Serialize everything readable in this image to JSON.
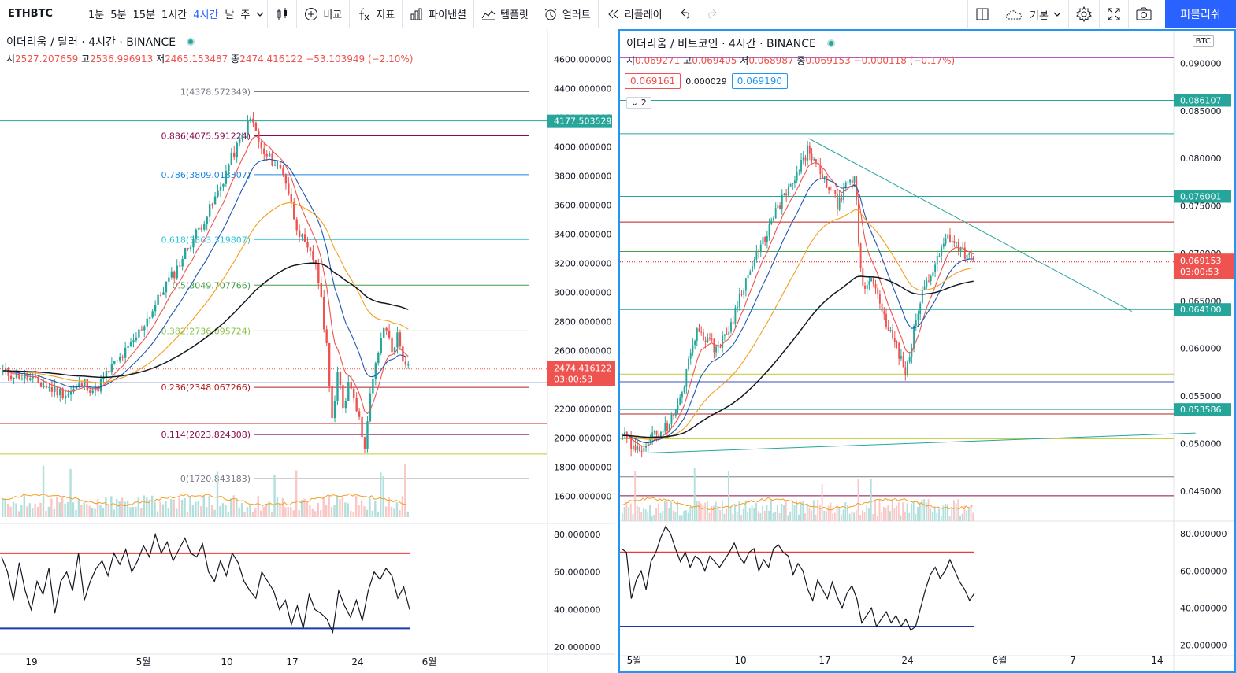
{
  "toolbar": {
    "symbol": "ETHBTC",
    "intervals": [
      "1분",
      "5분",
      "15분",
      "1시간",
      "4시간",
      "날",
      "주"
    ],
    "active_interval": "4시간",
    "compare": "비교",
    "indicators": "지표",
    "pine": "파이낸셜",
    "templates": "템플릿",
    "alert": "얼러트",
    "replay": "리플레이",
    "layout": "기본",
    "publish": "퍼블리쉬",
    "icons": [
      "candle-type-icon",
      "add-compare-icon",
      "fx-icon",
      "financials-icon",
      "templates-icon",
      "alarm-icon",
      "replay-icon",
      "undo-icon",
      "redo-icon",
      "layout-icon",
      "cloud-icon",
      "gear-icon",
      "fullscreen-icon",
      "camera-icon"
    ]
  },
  "left_pane": {
    "title": "이더리움 / 달러 · 4시간 · BINANCE",
    "ohlc": {
      "o_label": "시",
      "o": "2527.207659",
      "h_label": "고",
      "h": "2536.996913",
      "l_label": "저",
      "l": "2465.153487",
      "c_label": "종",
      "c": "2474.416122",
      "chg": "−53.103949 (−2.10%)"
    }
  },
  "right_pane": {
    "title": "이더리움 / 비트코인 · 4시간 · BINANCE",
    "ohlc": {
      "o_label": "시",
      "o": "0.069271",
      "h_label": "고",
      "h": "0.069405",
      "l_label": "저",
      "l": "0.068987",
      "c_label": "종",
      "c": "0.069153",
      "chg": "−0.000118 (−0.17%)"
    },
    "bid": "0.069161",
    "spread": "0.000029",
    "ask": "0.069190",
    "collapse": "2",
    "currency": "BTC"
  },
  "chart_data": [
    {
      "type": "candlestick",
      "title": "이더리움 / 달러 · 4시간 · BINANCE",
      "ylim": [
        1500,
        4700
      ],
      "y_ticks": [
        "4600.000000",
        "4400.000000",
        "4200.000000",
        "4000.000000",
        "3800.000000",
        "3600.000000",
        "3400.000000",
        "3200.000000",
        "3000.000000",
        "2800.000000",
        "2600.000000",
        "2400.000000",
        "2200.000000",
        "2000.000000",
        "1800.000000",
        "1600.000000"
      ],
      "x_ticks": [
        "19",
        "5월",
        "10",
        "17",
        "24",
        "6월"
      ],
      "last_price": "2474.416122",
      "countdown": "03:00:53",
      "highlight_level": "4177.503529",
      "close_path": [
        [
          0,
          2450
        ],
        [
          8,
          2420
        ],
        [
          16,
          2350
        ],
        [
          24,
          2300
        ],
        [
          30,
          2380
        ],
        [
          34,
          2320
        ],
        [
          40,
          2480
        ],
        [
          44,
          2560
        ],
        [
          48,
          2650
        ],
        [
          52,
          2780
        ],
        [
          56,
          2900
        ],
        [
          60,
          3050
        ],
        [
          64,
          3150
        ],
        [
          68,
          3300
        ],
        [
          72,
          3420
        ],
        [
          76,
          3550
        ],
        [
          80,
          3700
        ],
        [
          84,
          3900
        ],
        [
          88,
          4050
        ],
        [
          92,
          4200
        ],
        [
          96,
          3950
        ],
        [
          100,
          3900
        ],
        [
          104,
          3820
        ],
        [
          108,
          3500
        ],
        [
          112,
          3300
        ],
        [
          116,
          3200
        ],
        [
          118,
          2900
        ],
        [
          120,
          2600
        ],
        [
          122,
          2100
        ],
        [
          124,
          2450
        ],
        [
          126,
          2200
        ],
        [
          128,
          2400
        ],
        [
          130,
          2300
        ],
        [
          132,
          2100
        ],
        [
          134,
          1950
        ],
        [
          136,
          2300
        ],
        [
          138,
          2500
        ],
        [
          140,
          2700
        ],
        [
          142,
          2750
        ],
        [
          144,
          2600
        ],
        [
          146,
          2700
        ],
        [
          148,
          2550
        ],
        [
          150,
          2474
        ]
      ],
      "fib_levels": [
        {
          "label": "1(4378.572349)",
          "value": 4378.572349,
          "color": "#787b86"
        },
        {
          "label": "0.886(4075.591224)",
          "value": 4075.591224,
          "color": "#880e4f"
        },
        {
          "label": "0.786(3809.018307)",
          "value": 3809.018307,
          "color": "#1e88e5"
        },
        {
          "label": "0.618(3363.319807)",
          "value": 3363.319807,
          "color": "#26c6da"
        },
        {
          "label": "0.5(3049.707766)",
          "value": 3049.707766,
          "color": "#43a047"
        },
        {
          "label": "0.382(2736.095724)",
          "value": 2736.095724,
          "color": "#8bc34a"
        },
        {
          "label": "0.236(2348.067266)",
          "value": 2348.067266,
          "color": "#b71c1c"
        },
        {
          "label": "0.114(2023.824308)",
          "value": 2023.824308,
          "color": "#880e4f"
        },
        {
          "label": "0(1720.843183)",
          "value": 1720.843183,
          "color": "#787b86"
        }
      ],
      "hlines": [
        {
          "value": 4177.503529,
          "color": "#26a69a"
        },
        {
          "value": 3800,
          "color": "#b71c1c"
        },
        {
          "value": 2380,
          "color": "#3f51b5"
        },
        {
          "value": 2100,
          "color": "#c62828"
        },
        {
          "value": 1890,
          "color": "#c0ca33"
        }
      ],
      "rsi": {
        "upper": 70,
        "lower": 30,
        "ticks": [
          "80.000000",
          "60.000000",
          "40.000000",
          "20.000000"
        ],
        "ylim": [
          18,
          85
        ],
        "values": [
          68,
          60,
          45,
          65,
          50,
          40,
          55,
          48,
          62,
          38,
          55,
          60,
          50,
          70,
          45,
          55,
          62,
          66,
          58,
          70,
          64,
          72,
          60,
          66,
          74,
          68,
          80,
          70,
          76,
          66,
          72,
          78,
          70,
          68,
          75,
          60,
          55,
          66,
          58,
          70,
          65,
          55,
          50,
          46,
          60,
          55,
          50,
          40,
          45,
          32,
          42,
          30,
          48,
          40,
          38,
          35,
          28,
          50,
          42,
          36,
          45,
          34,
          50,
          60,
          56,
          62,
          58,
          46,
          52,
          40
        ]
      }
    },
    {
      "type": "candlestick",
      "title": "이더리움 / 비트코인 · 4시간 · BINANCE",
      "ylim": [
        0.0425,
        0.0912
      ],
      "y_ticks": [
        "0.090000",
        "0.085000",
        "0.080000",
        "0.075000",
        "0.070000",
        "0.065000",
        "0.060000",
        "0.055000",
        "0.050000",
        "0.045000"
      ],
      "x_ticks": [
        "5월",
        "10",
        "17",
        "24",
        "6월",
        "7",
        "14"
      ],
      "last_price": "0.069153",
      "countdown": "03:00:53",
      "level_labels": [
        "0.086107",
        "0.076001",
        "0.064100",
        "0.053586"
      ],
      "close_path": [
        [
          0,
          0.051
        ],
        [
          6,
          0.049
        ],
        [
          10,
          0.05
        ],
        [
          16,
          0.051
        ],
        [
          22,
          0.052
        ],
        [
          28,
          0.055
        ],
        [
          32,
          0.06
        ],
        [
          36,
          0.062
        ],
        [
          40,
          0.061
        ],
        [
          44,
          0.06
        ],
        [
          48,
          0.061
        ],
        [
          52,
          0.063
        ],
        [
          56,
          0.066
        ],
        [
          60,
          0.068
        ],
        [
          64,
          0.07
        ],
        [
          68,
          0.072
        ],
        [
          72,
          0.074
        ],
        [
          76,
          0.076
        ],
        [
          80,
          0.077
        ],
        [
          84,
          0.079
        ],
        [
          88,
          0.081
        ],
        [
          90,
          0.08
        ],
        [
          94,
          0.078
        ],
        [
          98,
          0.077
        ],
        [
          102,
          0.075
        ],
        [
          106,
          0.077
        ],
        [
          110,
          0.078
        ],
        [
          112,
          0.07
        ],
        [
          114,
          0.066
        ],
        [
          118,
          0.068
        ],
        [
          122,
          0.064
        ],
        [
          126,
          0.062
        ],
        [
          130,
          0.06
        ],
        [
          134,
          0.057
        ],
        [
          138,
          0.062
        ],
        [
          142,
          0.066
        ],
        [
          146,
          0.068
        ],
        [
          150,
          0.07
        ],
        [
          154,
          0.072
        ],
        [
          158,
          0.071
        ],
        [
          162,
          0.07
        ],
        [
          166,
          0.069
        ]
      ],
      "trendlines": [
        {
          "from": [
            88,
            0.0821
          ],
          "to": [
            240,
            0.0639
          ],
          "color": "#26a69a"
        },
        {
          "from": [
            12,
            0.049
          ],
          "to": [
            270,
            0.0511
          ],
          "color": "#26a69a"
        }
      ],
      "hlines": [
        {
          "value": 0.0906,
          "color": "#9c27b0"
        },
        {
          "value": 0.086107,
          "color": "#26a69a"
        },
        {
          "value": 0.0826,
          "color": "#26a69a"
        },
        {
          "value": 0.076001,
          "color": "#26a69a"
        },
        {
          "value": 0.0733,
          "color": "#b71c1c"
        },
        {
          "value": 0.0702,
          "color": "#43a047"
        },
        {
          "value": 0.0691,
          "color": "#ef5350",
          "dotted": true
        },
        {
          "value": 0.0641,
          "color": "#26a69a"
        },
        {
          "value": 0.0573,
          "color": "#c0ca33"
        },
        {
          "value": 0.0565,
          "color": "#3f51b5"
        },
        {
          "value": 0.053586,
          "color": "#26a69a"
        },
        {
          "value": 0.0531,
          "color": "#b71c1c"
        },
        {
          "value": 0.0505,
          "color": "#c0ca33"
        },
        {
          "value": 0.0465,
          "color": "#787b86"
        },
        {
          "value": 0.0445,
          "color": "#880e4f"
        }
      ],
      "rsi": {
        "upper": 70,
        "lower": 30,
        "ticks": [
          "80.000000",
          "60.000000",
          "40.000000",
          "20.000000"
        ],
        "ylim": [
          16,
          86
        ],
        "values": [
          72,
          70,
          45,
          55,
          60,
          50,
          65,
          70,
          78,
          84,
          80,
          72,
          65,
          70,
          62,
          68,
          66,
          60,
          68,
          65,
          62,
          66,
          70,
          75,
          68,
          64,
          70,
          72,
          60,
          66,
          62,
          72,
          74,
          70,
          68,
          58,
          64,
          60,
          50,
          44,
          55,
          50,
          45,
          54,
          46,
          40,
          48,
          52,
          45,
          32,
          36,
          40,
          30,
          34,
          38,
          32,
          36,
          30,
          34,
          28,
          30,
          40,
          50,
          58,
          62,
          56,
          60,
          66,
          60,
          54,
          50,
          44,
          48
        ]
      }
    }
  ]
}
